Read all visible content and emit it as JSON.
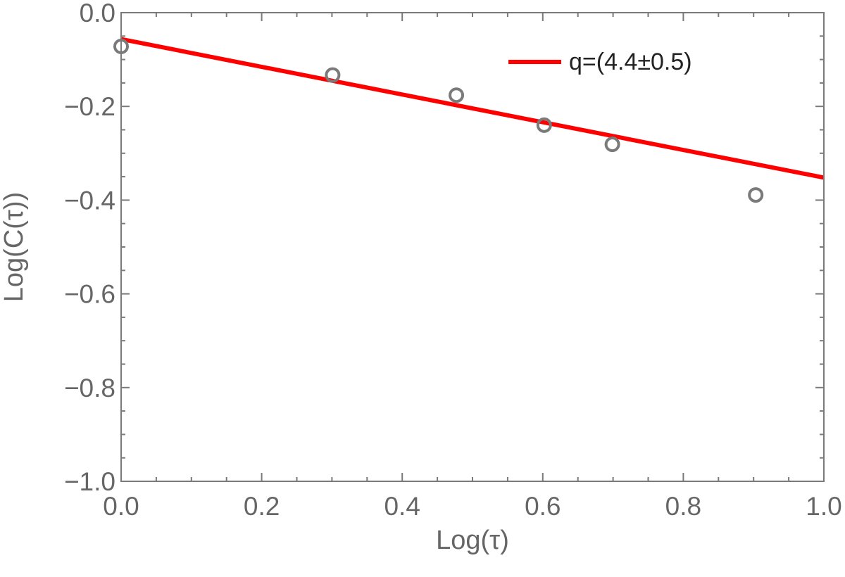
{
  "chart_data": {
    "type": "scatter",
    "xlabel": "Log(τ)",
    "ylabel": "Log(C(τ))",
    "xlim": [
      0.0,
      1.0
    ],
    "ylim": [
      -1.0,
      0.0
    ],
    "x_ticks": [
      0.0,
      0.2,
      0.4,
      0.6,
      0.8,
      1.0
    ],
    "y_ticks": [
      0.0,
      -0.2,
      -0.4,
      -0.6,
      -0.8,
      -1.0
    ],
    "x_tick_labels": [
      "0.0",
      "0.2",
      "0.4",
      "0.6",
      "0.8",
      "1.0"
    ],
    "y_tick_labels": [
      "0.0",
      "−0.2",
      "−0.4",
      "−0.6",
      "−0.8",
      "−1.0"
    ],
    "grid": false,
    "legend_position": "top-right",
    "series": [
      {
        "kind": "scatter",
        "marker": "open-circle",
        "color": "#7a7a7a",
        "x": [
          0.0,
          0.301,
          0.477,
          0.602,
          0.699,
          0.903
        ],
        "y": [
          -0.072,
          -0.133,
          -0.176,
          -0.24,
          -0.281,
          -0.389
        ]
      },
      {
        "kind": "line",
        "name": "q=(4.4±0.5)",
        "color": "#ff0000",
        "x": [
          -0.01,
          1.0
        ],
        "y": [
          -0.0535,
          -0.352
        ]
      }
    ]
  }
}
